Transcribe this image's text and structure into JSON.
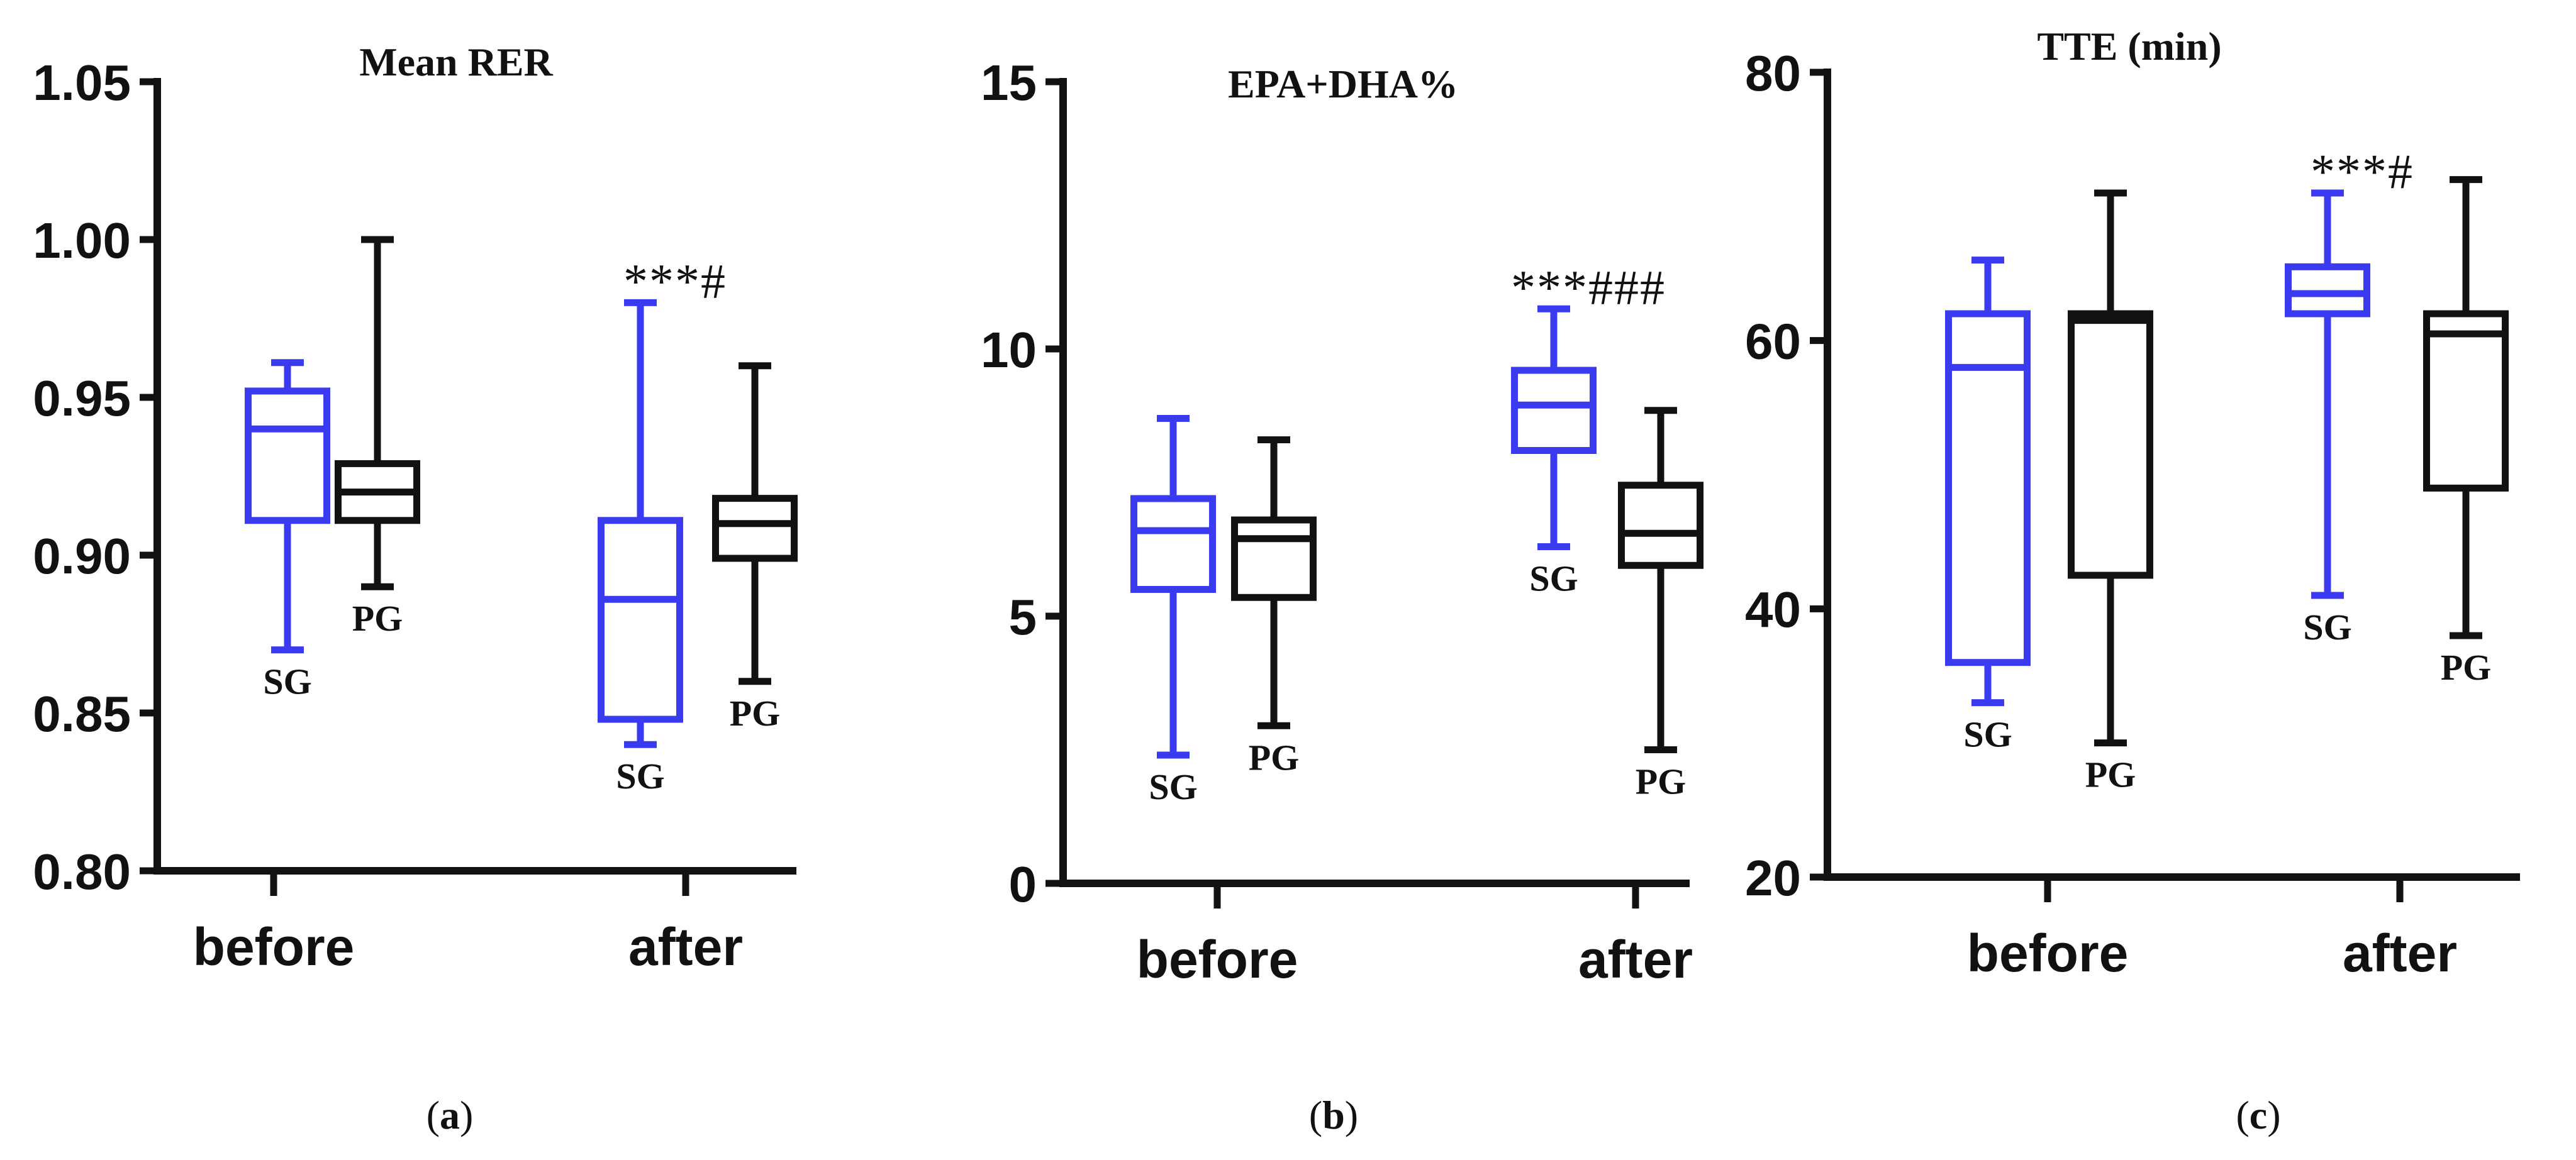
{
  "figure": {
    "panels": [
      {
        "sublabel_prefix": "(",
        "sublabel_letter": "a",
        "sublabel_suffix": ")"
      },
      {
        "sublabel_prefix": "(",
        "sublabel_letter": "b",
        "sublabel_suffix": ")"
      },
      {
        "sublabel_prefix": "(",
        "sublabel_letter": "c",
        "sublabel_suffix": ")"
      }
    ]
  },
  "colors": {
    "SG": "#3a3af0",
    "PG": "#111111",
    "axis": "#111111"
  },
  "chart_data": [
    {
      "type": "box",
      "title": "Mean RER",
      "categories": [
        "before",
        "after"
      ],
      "ylim": [
        0.8,
        1.05
      ],
      "yticks": [
        0.8,
        0.85,
        0.9,
        0.95,
        1.0,
        1.05
      ],
      "ytick_labels": [
        "0.80",
        "0.85",
        "0.90",
        "0.95",
        "1.00",
        "1.05"
      ],
      "series": [
        {
          "name": "SG",
          "boxes": [
            {
              "category": "before",
              "min": 0.87,
              "q1": 0.911,
              "median": 0.94,
              "q3": 0.952,
              "max": 0.961,
              "label": "SG",
              "annotation": ""
            },
            {
              "category": "after",
              "min": 0.84,
              "q1": 0.848,
              "median": 0.886,
              "q3": 0.911,
              "max": 0.98,
              "label": "SG",
              "annotation": "***#"
            }
          ]
        },
        {
          "name": "PG",
          "boxes": [
            {
              "category": "before",
              "min": 0.89,
              "q1": 0.911,
              "median": 0.92,
              "q3": 0.929,
              "max": 1.0,
              "label": "PG",
              "annotation": ""
            },
            {
              "category": "after",
              "min": 0.86,
              "q1": 0.899,
              "median": 0.91,
              "q3": 0.918,
              "max": 0.96,
              "label": "PG",
              "annotation": ""
            }
          ]
        }
      ]
    },
    {
      "type": "box",
      "title": "EPA+DHA%",
      "categories": [
        "before",
        "after"
      ],
      "ylim": [
        0,
        15
      ],
      "yticks": [
        0,
        5,
        10,
        15
      ],
      "ytick_labels": [
        "0",
        "5",
        "10",
        "15"
      ],
      "series": [
        {
          "name": "SG",
          "boxes": [
            {
              "category": "before",
              "min": 2.4,
              "q1": 5.5,
              "median": 6.6,
              "q3": 7.2,
              "max": 8.7,
              "label": "SG",
              "annotation": ""
            },
            {
              "category": "after",
              "min": 6.3,
              "q1": 8.1,
              "median": 8.95,
              "q3": 9.6,
              "max": 10.75,
              "label": "SG",
              "annotation": "***###"
            }
          ]
        },
        {
          "name": "PG",
          "boxes": [
            {
              "category": "before",
              "min": 2.95,
              "q1": 5.35,
              "median": 6.45,
              "q3": 6.8,
              "max": 8.3,
              "label": "PG",
              "annotation": ""
            },
            {
              "category": "after",
              "min": 2.5,
              "q1": 5.95,
              "median": 6.55,
              "q3": 7.45,
              "max": 8.85,
              "label": "PG",
              "annotation": ""
            }
          ]
        }
      ]
    },
    {
      "type": "box",
      "title": "TTE (min)",
      "categories": [
        "before",
        "after"
      ],
      "ylim": [
        20,
        80
      ],
      "yticks": [
        20,
        40,
        60,
        80
      ],
      "ytick_labels": [
        "20",
        "40",
        "60",
        "80"
      ],
      "series": [
        {
          "name": "SG",
          "boxes": [
            {
              "category": "before",
              "min": 33,
              "q1": 36,
              "median": 58,
              "q3": 62,
              "max": 66,
              "label": "SG",
              "annotation": ""
            },
            {
              "category": "after",
              "min": 41,
              "q1": 62,
              "median": 63.5,
              "q3": 65.5,
              "max": 71,
              "label": "SG",
              "annotation": "***#"
            }
          ]
        },
        {
          "name": "PG",
          "boxes": [
            {
              "category": "before",
              "min": 30,
              "q1": 42.5,
              "median": 61.5,
              "q3": 62,
              "max": 71,
              "label": "PG",
              "annotation": ""
            },
            {
              "category": "after",
              "min": 38,
              "q1": 49,
              "median": 60.5,
              "q3": 62,
              "max": 72,
              "label": "PG",
              "annotation": ""
            }
          ]
        }
      ]
    }
  ]
}
